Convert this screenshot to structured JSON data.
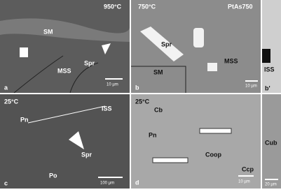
{
  "panels": [
    {
      "letter": "a",
      "labels": [
        "950°C",
        "SM",
        "MSS",
        "Spr"
      ],
      "scale": "10 µm"
    },
    {
      "letter": "b",
      "labels": [
        "750°C",
        "PtAs750",
        "Spr",
        "SM",
        "MSS"
      ],
      "scale": "10 µm"
    },
    {
      "letter": "b'",
      "labels": [
        "ISS"
      ]
    },
    {
      "letter": "c",
      "labels": [
        "25°C",
        "ISS",
        "Pn",
        "Spr",
        "Po"
      ],
      "scale": "100 µm"
    },
    {
      "letter": "d",
      "labels": [
        "25°C",
        "Cb",
        "Pn",
        "Coop",
        "Ccp"
      ],
      "scale": "10 µm"
    },
    {
      "labels": [
        "Cub"
      ],
      "scale": "20 µm"
    }
  ]
}
